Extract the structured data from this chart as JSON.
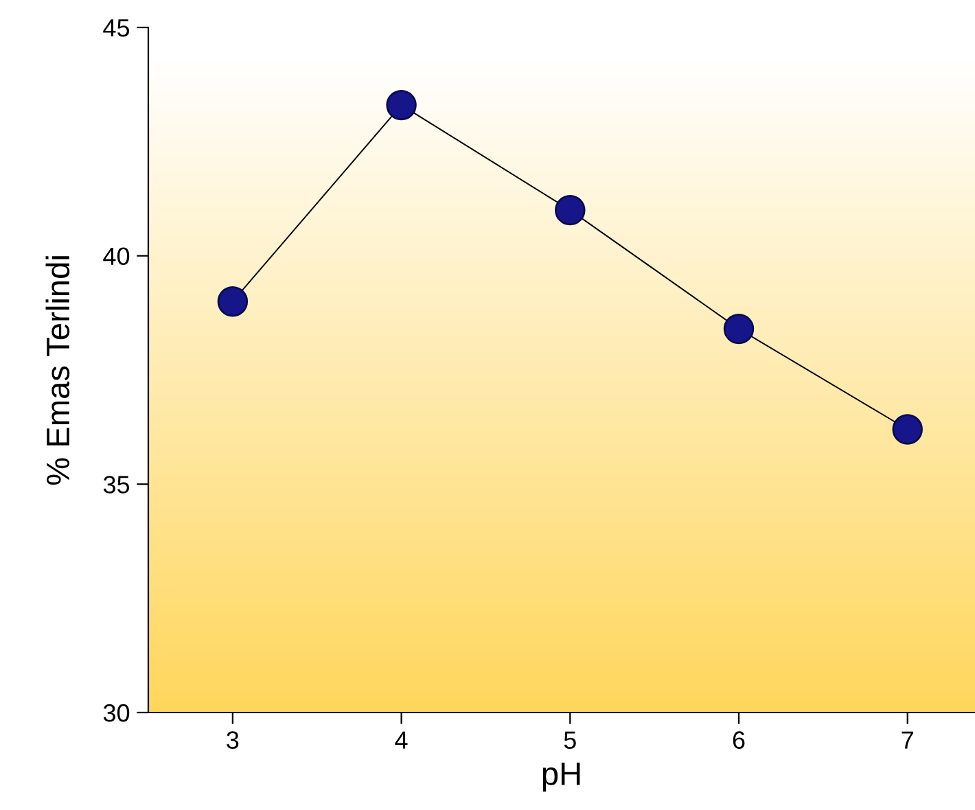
{
  "chart_data": {
    "type": "line",
    "xlabel": "pH",
    "ylabel": "% Emas Terlindi",
    "x": [
      3,
      4,
      5,
      6,
      7
    ],
    "series": [
      {
        "color": "#16168a",
        "values": [
          39.0,
          43.3,
          41.0,
          38.4,
          36.2
        ]
      }
    ],
    "xlim": [
      2.5,
      7.4
    ],
    "ylim": [
      30,
      45
    ],
    "xticks": [
      3,
      4,
      5,
      6,
      7
    ],
    "yticks": [
      30,
      35,
      40,
      45
    ],
    "marker": "circle",
    "line_style": "solid",
    "grid": false,
    "legend": false
  }
}
